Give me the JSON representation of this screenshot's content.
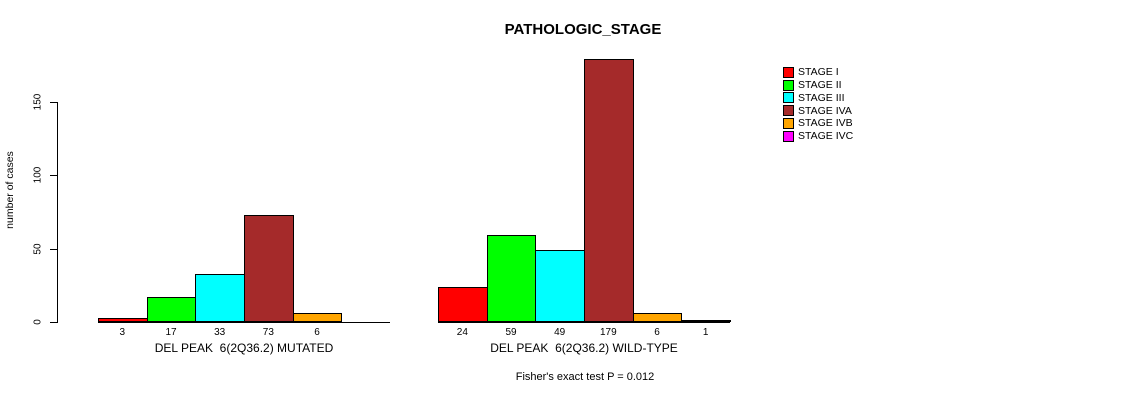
{
  "chart_data": {
    "type": "bar",
    "title": "PATHOLOGIC_STAGE",
    "ylabel": "number of cases",
    "xlabel": "",
    "yticks": [
      0,
      50,
      100,
      150
    ],
    "ylim": [
      0,
      179
    ],
    "grid": false,
    "legend_position": "right",
    "legend": [
      {
        "label": "STAGE I",
        "color": "#FF0000"
      },
      {
        "label": "STAGE II",
        "color": "#00FF00"
      },
      {
        "label": "STAGE III",
        "color": "#00FFFF"
      },
      {
        "label": "STAGE IVA",
        "color": "#A52A2A"
      },
      {
        "label": "STAGE IVB",
        "color": "#FFA500"
      },
      {
        "label": "STAGE IVC",
        "color": "#FF00FF"
      }
    ],
    "categories": [
      "STAGE I",
      "STAGE II",
      "STAGE III",
      "STAGE IVA",
      "STAGE IVB",
      "STAGE IVC"
    ],
    "groups": [
      {
        "label": "DEL PEAK  6(2Q36.2) MUTATED",
        "values": [
          3,
          17,
          33,
          73,
          6,
          0
        ],
        "bar_labels": [
          "3",
          "17",
          "33",
          "73",
          "6",
          ""
        ]
      },
      {
        "label": "DEL PEAK  6(2Q36.2) WILD-TYPE",
        "values": [
          24,
          59,
          49,
          179,
          6,
          1
        ],
        "bar_labels": [
          "24",
          "59",
          "49",
          "179",
          "6",
          "1"
        ]
      }
    ],
    "annotation": "Fisher's exact test P = 0.012",
    "colors": {
      "axis": "#000000",
      "text": "#000000",
      "background": "#FFFFFF"
    }
  }
}
